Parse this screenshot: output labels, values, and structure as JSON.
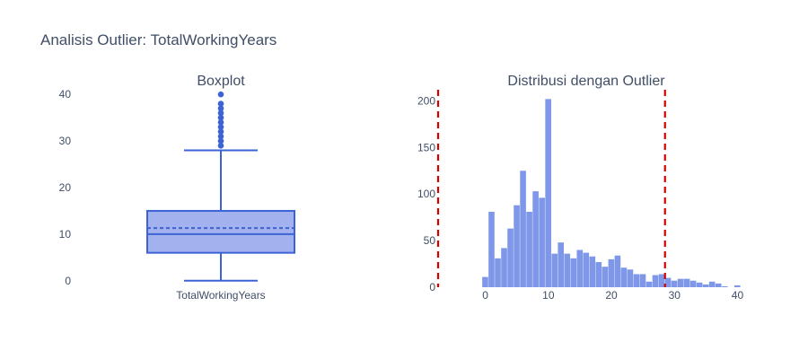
{
  "figure": {
    "title": "Analisis Outlier: TotalWorkingYears"
  },
  "colors": {
    "box_line": "#3b63d6",
    "box_fill": "#a3b2ee",
    "hist_bar": "#7f97e8",
    "outlier_line": "#d40000",
    "text": "#3f4e66"
  },
  "chart_data": [
    {
      "type": "box",
      "title": "Boxplot",
      "category": "TotalWorkingYears",
      "stats": {
        "min": 0,
        "q1": 6,
        "median": 10,
        "mean": 11.3,
        "q3": 15,
        "upper_fence": 28
      },
      "outliers": [
        29,
        30,
        31,
        32,
        33,
        34,
        35,
        36,
        37,
        38,
        40
      ],
      "ylim": [
        -1,
        41
      ],
      "yticks": [
        0,
        10,
        20,
        30,
        40
      ],
      "grid": false
    },
    {
      "type": "histogram",
      "title": "Distribusi dengan Outlier",
      "bin_width": 1,
      "bins": [
        {
          "x": 0,
          "y": 11
        },
        {
          "x": 1,
          "y": 81
        },
        {
          "x": 2,
          "y": 31
        },
        {
          "x": 3,
          "y": 42
        },
        {
          "x": 4,
          "y": 63
        },
        {
          "x": 5,
          "y": 88
        },
        {
          "x": 6,
          "y": 125
        },
        {
          "x": 7,
          "y": 81
        },
        {
          "x": 8,
          "y": 103
        },
        {
          "x": 9,
          "y": 96
        },
        {
          "x": 10,
          "y": 202
        },
        {
          "x": 11,
          "y": 36
        },
        {
          "x": 12,
          "y": 48
        },
        {
          "x": 13,
          "y": 36
        },
        {
          "x": 14,
          "y": 31
        },
        {
          "x": 15,
          "y": 40
        },
        {
          "x": 16,
          "y": 37
        },
        {
          "x": 17,
          "y": 33
        },
        {
          "x": 18,
          "y": 27
        },
        {
          "x": 19,
          "y": 22
        },
        {
          "x": 20,
          "y": 30
        },
        {
          "x": 21,
          "y": 34
        },
        {
          "x": 22,
          "y": 21
        },
        {
          "x": 23,
          "y": 19
        },
        {
          "x": 24,
          "y": 14
        },
        {
          "x": 25,
          "y": 14
        },
        {
          "x": 26,
          "y": 6
        },
        {
          "x": 27,
          "y": 13
        },
        {
          "x": 28,
          "y": 14
        },
        {
          "x": 29,
          "y": 10
        },
        {
          "x": 30,
          "y": 7
        },
        {
          "x": 31,
          "y": 9
        },
        {
          "x": 32,
          "y": 9
        },
        {
          "x": 33,
          "y": 7
        },
        {
          "x": 34,
          "y": 5
        },
        {
          "x": 35,
          "y": 3
        },
        {
          "x": 36,
          "y": 6
        },
        {
          "x": 37,
          "y": 4
        },
        {
          "x": 38,
          "y": 1
        },
        {
          "x": 39,
          "y": 0
        },
        {
          "x": 40,
          "y": 2
        }
      ],
      "xlim": [
        -7.5,
        41.5
      ],
      "ylim": [
        0,
        212
      ],
      "xticks": [
        0,
        10,
        20,
        30,
        40
      ],
      "yticks": [
        0,
        50,
        100,
        150,
        200
      ],
      "reference_lines": [
        {
          "x": -7.5,
          "style": "dashed",
          "color": "#d40000"
        },
        {
          "x": 28.5,
          "style": "dashed",
          "color": "#d40000"
        }
      ],
      "grid": false
    }
  ]
}
